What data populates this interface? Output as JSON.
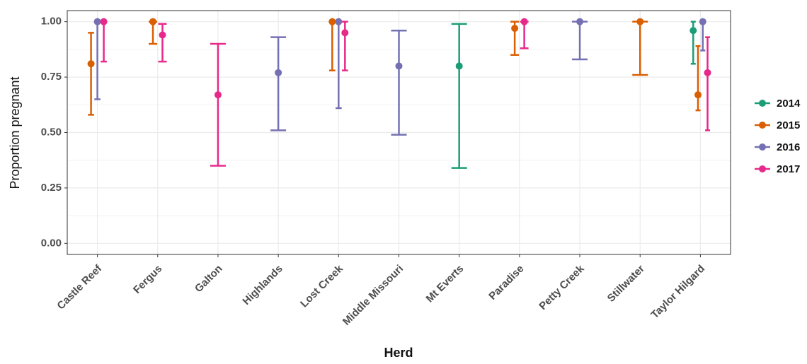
{
  "chart_data": {
    "type": "errorbar",
    "x_label": "Herd",
    "y_label": "Proportion pregnant",
    "categories": [
      "Castle Reef",
      "Fergus",
      "Galton",
      "Highlands",
      "Lost Creek",
      "Middle Missouri",
      "Mt Everts",
      "Paradise",
      "Petty Creek",
      "Stillwater",
      "Taylor Hilgard"
    ],
    "series": [
      {
        "name": "2014",
        "color": "#1b9e77",
        "values": [
          null,
          null,
          null,
          null,
          null,
          null,
          0.8,
          null,
          null,
          null,
          0.96
        ],
        "lower": [
          null,
          null,
          null,
          null,
          null,
          null,
          0.34,
          null,
          null,
          null,
          0.81
        ],
        "upper": [
          null,
          null,
          null,
          null,
          null,
          null,
          0.99,
          null,
          null,
          null,
          1.0
        ]
      },
      {
        "name": "2015",
        "color": "#d95f02",
        "values": [
          0.81,
          1.0,
          null,
          null,
          1.0,
          null,
          null,
          0.97,
          null,
          1.0,
          0.67
        ],
        "lower": [
          0.58,
          0.9,
          null,
          null,
          0.78,
          null,
          null,
          0.85,
          null,
          0.76,
          0.6
        ],
        "upper": [
          0.95,
          1.0,
          null,
          null,
          1.0,
          null,
          null,
          1.0,
          null,
          1.0,
          0.89
        ]
      },
      {
        "name": "2016",
        "color": "#7570b3",
        "values": [
          1.0,
          null,
          null,
          0.77,
          1.0,
          0.8,
          null,
          null,
          1.0,
          null,
          1.0
        ],
        "lower": [
          0.65,
          null,
          null,
          0.51,
          0.61,
          0.49,
          null,
          null,
          0.83,
          null,
          0.87
        ],
        "upper": [
          1.0,
          null,
          null,
          0.93,
          1.0,
          0.96,
          null,
          null,
          1.0,
          null,
          1.0
        ]
      },
      {
        "name": "2017",
        "color": "#e7298a",
        "values": [
          1.0,
          0.94,
          0.67,
          null,
          0.95,
          null,
          null,
          1.0,
          null,
          null,
          0.77
        ],
        "lower": [
          0.82,
          0.82,
          0.35,
          null,
          0.78,
          null,
          null,
          0.88,
          null,
          null,
          0.51
        ],
        "upper": [
          1.0,
          0.99,
          0.9,
          null,
          1.0,
          null,
          null,
          1.0,
          null,
          null,
          0.93
        ]
      }
    ],
    "ylim": [
      -0.05,
      1.05
    ],
    "yticks": [
      {
        "value": 0,
        "label": "0.00"
      },
      {
        "value": 0.25,
        "label": "0.25"
      },
      {
        "value": 0.5,
        "label": "0.50"
      },
      {
        "value": 0.75,
        "label": "0.75"
      },
      {
        "value": 1,
        "label": "1.00"
      }
    ],
    "grid": true,
    "legend": "right"
  }
}
